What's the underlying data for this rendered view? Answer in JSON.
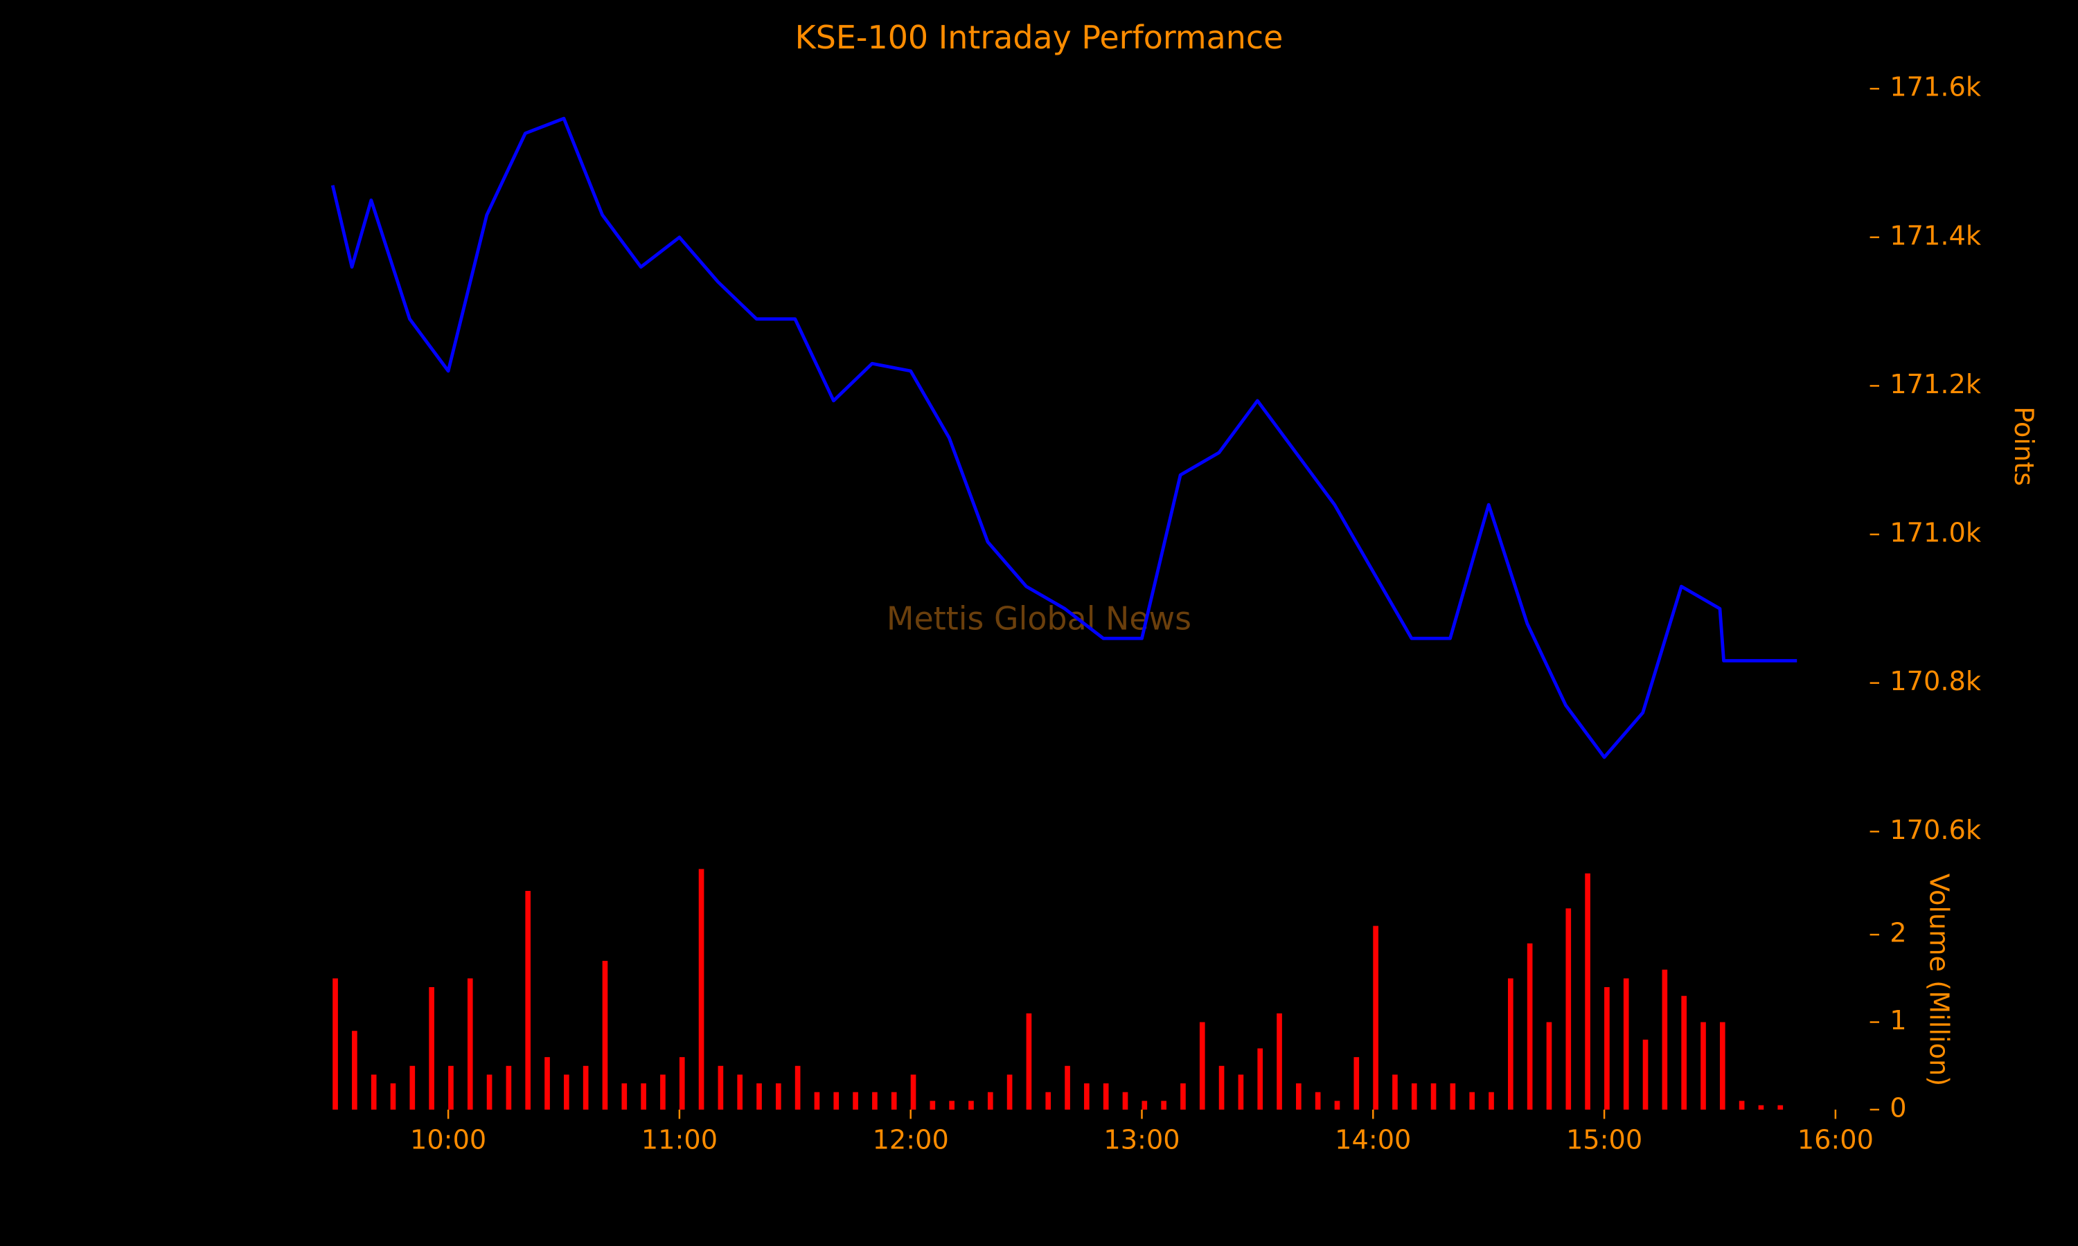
{
  "chart_data": [
    {
      "type": "line",
      "title": "KSE-100 Intraday Performance",
      "watermark": "Mettis Global News",
      "ylabel": "Points",
      "color": "#0000ff",
      "x": [
        "09:30",
        "09:35",
        "09:40",
        "09:50",
        "10:00",
        "10:10",
        "10:20",
        "10:30",
        "10:40",
        "10:50",
        "11:00",
        "11:10",
        "11:20",
        "11:30",
        "11:40",
        "11:50",
        "12:00",
        "12:10",
        "12:20",
        "12:30",
        "12:40",
        "12:50",
        "13:00",
        "13:10",
        "13:20",
        "13:30",
        "13:40",
        "13:50",
        "14:00",
        "14:10",
        "14:20",
        "14:30",
        "14:40",
        "14:50",
        "15:00",
        "15:10",
        "15:20",
        "15:30",
        "15:31",
        "15:50"
      ],
      "values": [
        171470,
        171360,
        171450,
        171290,
        171220,
        171430,
        171540,
        171560,
        171430,
        171360,
        171400,
        171340,
        171290,
        171290,
        171180,
        171230,
        171220,
        171130,
        170990,
        170930,
        170900,
        170860,
        170860,
        171080,
        171110,
        171180,
        171110,
        171040,
        170950,
        170860,
        170860,
        171040,
        170880,
        170770,
        170700,
        170760,
        170930,
        170900,
        170830,
        170830
      ],
      "xlim": [
        "09:30",
        "16:00"
      ],
      "ylim": [
        170600,
        171600
      ],
      "yticks": [
        {
          "value": 170600,
          "label": "170.6k"
        },
        {
          "value": 170800,
          "label": "170.8k"
        },
        {
          "value": 171000,
          "label": "171.0k"
        },
        {
          "value": 171200,
          "label": "171.2k"
        },
        {
          "value": 171400,
          "label": "171.4k"
        },
        {
          "value": 171600,
          "label": "171.6k"
        }
      ]
    },
    {
      "type": "bar",
      "ylabel": "Volume (Million)",
      "color": "#ff0000",
      "x": [
        "09:30",
        "09:35",
        "09:40",
        "09:45",
        "09:50",
        "09:55",
        "10:00",
        "10:05",
        "10:10",
        "10:15",
        "10:20",
        "10:25",
        "10:30",
        "10:35",
        "10:40",
        "10:45",
        "10:50",
        "10:55",
        "11:00",
        "11:05",
        "11:10",
        "11:15",
        "11:20",
        "11:25",
        "11:30",
        "11:35",
        "11:40",
        "11:45",
        "11:50",
        "11:55",
        "12:00",
        "12:05",
        "12:10",
        "12:15",
        "12:20",
        "12:25",
        "12:30",
        "12:35",
        "12:40",
        "12:45",
        "12:50",
        "12:55",
        "13:00",
        "13:05",
        "13:10",
        "13:15",
        "13:20",
        "13:25",
        "13:30",
        "13:35",
        "13:40",
        "13:45",
        "13:50",
        "13:55",
        "14:00",
        "14:05",
        "14:10",
        "14:15",
        "14:20",
        "14:25",
        "14:30",
        "14:35",
        "14:40",
        "14:45",
        "14:50",
        "14:55",
        "15:00",
        "15:05",
        "15:10",
        "15:15",
        "15:20",
        "15:25",
        "15:30",
        "15:35",
        "15:40",
        "15:45"
      ],
      "values": [
        1.5,
        0.9,
        0.4,
        0.3,
        0.5,
        1.4,
        0.5,
        1.5,
        0.4,
        0.5,
        2.5,
        0.6,
        0.4,
        0.5,
        1.7,
        0.3,
        0.3,
        0.4,
        0.6,
        2.75,
        0.5,
        0.4,
        0.3,
        0.3,
        0.5,
        0.2,
        0.2,
        0.2,
        0.2,
        0.2,
        0.4,
        0.1,
        0.1,
        0.1,
        0.2,
        0.4,
        1.1,
        0.2,
        0.5,
        0.3,
        0.3,
        0.2,
        0.1,
        0.1,
        0.3,
        1.0,
        0.5,
        0.4,
        0.7,
        1.1,
        0.3,
        0.2,
        0.1,
        0.6,
        2.1,
        0.4,
        0.3,
        0.3,
        0.3,
        0.2,
        0.2,
        1.5,
        1.9,
        1.0,
        2.3,
        2.7,
        1.4,
        1.5,
        0.8,
        1.6,
        1.3,
        1.0,
        1.0,
        0.1,
        0.05,
        0.05
      ],
      "xlim": [
        "09:30",
        "16:00"
      ],
      "xticks": [
        "10:00",
        "11:00",
        "12:00",
        "13:00",
        "14:00",
        "15:00",
        "16:00"
      ],
      "ylim": [
        0,
        2.8
      ],
      "yticks": [
        0,
        1,
        2
      ]
    }
  ]
}
